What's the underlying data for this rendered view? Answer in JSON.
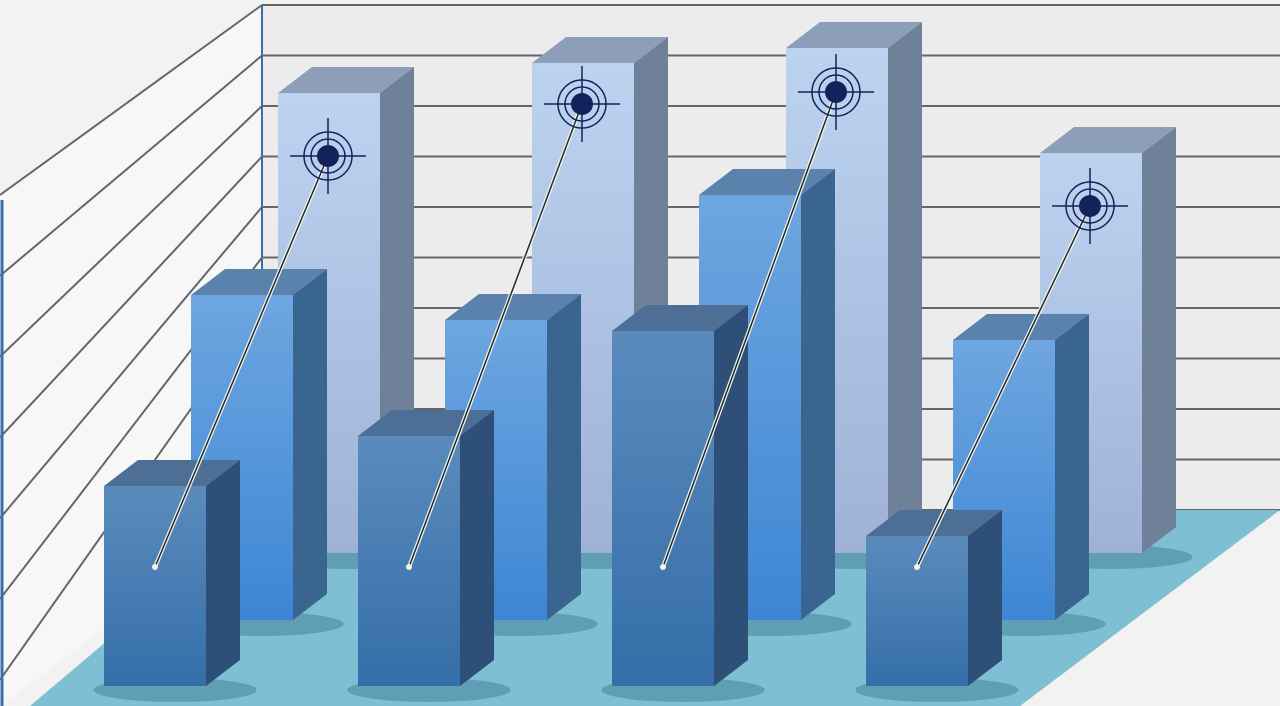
{
  "chart_data": {
    "type": "bar",
    "style": "3d-grouped-rows",
    "title": "",
    "xlabel": "",
    "ylabel": "",
    "categories": [
      "",
      "",
      "",
      ""
    ],
    "series": [
      {
        "values": [
          9.2,
          9.8,
          10.1,
          8.0
        ],
        "color": "#b8cfee"
      },
      {
        "values": [
          6.5,
          6.0,
          8.5,
          5.6
        ],
        "color": "#5b9ee0"
      },
      {
        "values": [
          4.0,
          5.0,
          7.1,
          3.0
        ],
        "color": "#4a80b8"
      }
    ],
    "ylim": [
      0,
      11
    ],
    "grid": true,
    "legend": "none",
    "floor_color": "#7fbfd4",
    "target_marker_color": "#13225a"
  }
}
